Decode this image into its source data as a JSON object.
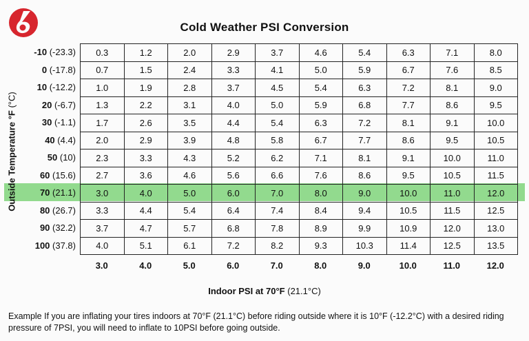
{
  "title": "Cold Weather PSI Conversion",
  "ylabel": {
    "main": "Outside Temperature °F",
    "unit": "(°C)"
  },
  "xlabel": {
    "main": "Indoor PSI at 70°F",
    "unit": "(21.1°C)"
  },
  "note": "Example  If you are inflating your tires indoors at 70°F (21.1°C) before riding outside where it is 10°F (-12.2°C) with a desired riding pressure of 7PSI, you will need to inflate to 10PSI before going outside.",
  "colors": {
    "highlight": "#7fd37a",
    "logo": "#d7262e"
  },
  "chart_data": {
    "type": "table",
    "title": "Cold Weather PSI Conversion",
    "xlabel": "Indoor PSI at 70°F (21.1°C)",
    "ylabel": "Outside Temperature °F (°C)",
    "highlighted_row": "70",
    "columns": [
      "3.0",
      "4.0",
      "5.0",
      "6.0",
      "7.0",
      "8.0",
      "9.0",
      "10.0",
      "11.0",
      "12.0"
    ],
    "rows": [
      {
        "f": "-10",
        "c": "(-23.3)",
        "values": [
          "0.3",
          "1.2",
          "2.0",
          "2.9",
          "3.7",
          "4.6",
          "5.4",
          "6.3",
          "7.1",
          "8.0"
        ]
      },
      {
        "f": "0",
        "c": "(-17.8)",
        "values": [
          "0.7",
          "1.5",
          "2.4",
          "3.3",
          "4.1",
          "5.0",
          "5.9",
          "6.7",
          "7.6",
          "8.5"
        ]
      },
      {
        "f": "10",
        "c": "(-12.2)",
        "values": [
          "1.0",
          "1.9",
          "2.8",
          "3.7",
          "4.5",
          "5.4",
          "6.3",
          "7.2",
          "8.1",
          "9.0"
        ]
      },
      {
        "f": "20",
        "c": "(-6.7)",
        "values": [
          "1.3",
          "2.2",
          "3.1",
          "4.0",
          "5.0",
          "5.9",
          "6.8",
          "7.7",
          "8.6",
          "9.5"
        ]
      },
      {
        "f": "30",
        "c": "(-1.1)",
        "values": [
          "1.7",
          "2.6",
          "3.5",
          "4.4",
          "5.4",
          "6.3",
          "7.2",
          "8.1",
          "9.1",
          "10.0"
        ]
      },
      {
        "f": "40",
        "c": "(4.4)",
        "values": [
          "2.0",
          "2.9",
          "3.9",
          "4.8",
          "5.8",
          "6.7",
          "7.7",
          "8.6",
          "9.5",
          "10.5"
        ]
      },
      {
        "f": "50",
        "c": "(10)",
        "values": [
          "2.3",
          "3.3",
          "4.3",
          "5.2",
          "6.2",
          "7.1",
          "8.1",
          "9.1",
          "10.0",
          "11.0"
        ]
      },
      {
        "f": "60",
        "c": "(15.6)",
        "values": [
          "2.7",
          "3.6",
          "4.6",
          "5.6",
          "6.6",
          "7.6",
          "8.6",
          "9.5",
          "10.5",
          "11.5"
        ]
      },
      {
        "f": "70",
        "c": "(21.1)",
        "values": [
          "3.0",
          "4.0",
          "5.0",
          "6.0",
          "7.0",
          "8.0",
          "9.0",
          "10.0",
          "11.0",
          "12.0"
        ]
      },
      {
        "f": "80",
        "c": "(26.7)",
        "values": [
          "3.3",
          "4.4",
          "5.4",
          "6.4",
          "7.4",
          "8.4",
          "9.4",
          "10.5",
          "11.5",
          "12.5"
        ]
      },
      {
        "f": "90",
        "c": "(32.2)",
        "values": [
          "3.7",
          "4.7",
          "5.7",
          "6.8",
          "7.8",
          "8.9",
          "9.9",
          "10.9",
          "12.0",
          "13.0"
        ]
      },
      {
        "f": "100",
        "c": "(37.8)",
        "values": [
          "4.0",
          "5.1",
          "6.1",
          "7.2",
          "8.2",
          "9.3",
          "10.3",
          "11.4",
          "12.5",
          "13.5"
        ]
      }
    ]
  }
}
